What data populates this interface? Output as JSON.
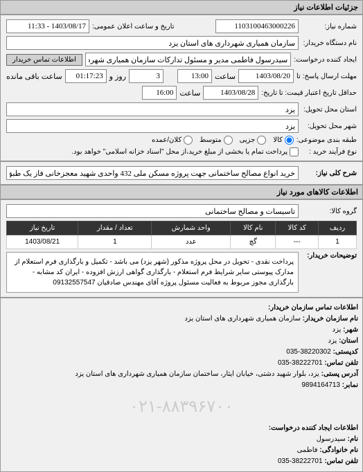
{
  "header": {
    "title": "جزئیات اطلاعات نیاز"
  },
  "form": {
    "request_number_label": "شماره نیاز:",
    "request_number": "1103100463000226",
    "announce_datetime_label": "تاریخ و ساعت اعلان عمومی:",
    "announce_datetime": "1403/08/17 - 11:33",
    "buyer_org_label": "نام دستگاه خریدار:",
    "buyer_org": "سازمان همیاری شهرداری های استان یزد",
    "requester_label": "ایجاد کننده درخواست:",
    "requester": "سیدرسول فاطمی مدیر و مسئول تدارکات سازمان همیاری شهرداری های استا",
    "contact_btn": "اطلاعات تماس خریدار",
    "response_deadline_label": "مهلت ارسال پاسخ: تا",
    "response_date": "1403/08/20",
    "time_label": "ساعت",
    "response_time": "13:00",
    "days_label": "روز و",
    "remaining_days": "3",
    "remaining_time": "01:17:23",
    "remaining_label": "ساعت باقی مانده",
    "validity_label": "حداقل تاریخ اعتبار قیمت: تا تاریخ:",
    "validity_date": "1403/08/28",
    "validity_time": "16:00",
    "delivery_province_label": "استان محل تحویل:",
    "delivery_province": "یزد",
    "delivery_city_label": "شهر محل تحویل:",
    "delivery_city": "یزد",
    "quantity_type_label": "طبقه بندی موضوعی:",
    "radio_goods": "کالا",
    "radio_service": "جزیی",
    "radio_medium": "متوسط",
    "radio_partial": "کلان/عمده",
    "purchase_method_label": "نوع فرآیند خرید :",
    "checkbox1": "پرداخت تمام یا بخشی از مبلغ خرید،از محل \"اسناد خزانه اسلامی\" خواهد بود."
  },
  "keywords": {
    "label": "شرح کلی نیاز:",
    "value": "خرید انواع مصالح ساختمانی جهت پروژه مسکن ملی 432 واحدی شهید معجزخانی فاز یک طبق فرم استعلام"
  },
  "goods_info": {
    "section_title": "اطلاعات کالاهای مورد نیاز",
    "group_label": "گروه کالا:",
    "group_value": "تاسیسات و مصالح ساختمانی"
  },
  "table": {
    "headers": [
      "ردیف",
      "کد کالا",
      "نام کالا",
      "واحد شمارش",
      "تعداد / مقدار",
      "تاریخ نیاز"
    ],
    "rows": [
      {
        "index": "1",
        "code": "---",
        "name": "گچ",
        "unit": "عدد",
        "qty": "1",
        "date": "1403/08/21"
      }
    ]
  },
  "description": {
    "label": "توضیحات خریدار:",
    "text": "پرداخت نقدی - تحویل در محل پروژه مذکور (شهر یزد) می باشد - تکمیل و بارگذاری فرم استعلام از مدارک پیوستی سایر شرایط فرم استعلام - بارگذاری گواهی ارزش افزوده - ایران کد مشابه - بارگذاری مجوز مربوط به فعالیت مسئول پروژه آقای مهندس صادقیان 09132557547"
  },
  "contact": {
    "section_title": "اطلاعات تماس سازمان خریدار:",
    "org_label": "نام سازمان خریدار:",
    "org_value": "سازمان همیاری شهرداری های استان یزد",
    "city_label": "شهر:",
    "city_value": "یزد",
    "province_label": "استان:",
    "province_value": "یزد",
    "postal_label": "کدپستی:",
    "postal_value": "38220302-035",
    "phone_label": "تلفن تماس:",
    "phone_value": "38222701-035",
    "address_label": "آدرس پستی:",
    "address_value": "یزد، بلوار شهید دشتی، خیابان ایثار، ساختمان سازمان همیاری شهرداری های استان یزد",
    "fax_label": "نمابر:",
    "fax_value": "9894164713",
    "requester_section": "اطلاعات ایجاد کننده درخواست:",
    "name_label": "نام:",
    "name_value": "سیدرسول",
    "family_label": "نام خانوادگی:",
    "family_value": "فاطمی",
    "req_phone_label": "تلفن تماس:",
    "req_phone_value": "38222701-035"
  },
  "watermark": "۰۲۱-۸۸۳۹۶۷۰۰",
  "colors": {
    "bg": "#e8e8e8",
    "panel_bg": "#f0f0f0",
    "header_bg": "#d0d0d0",
    "table_header_bg": "#333333",
    "input_border": "#888888",
    "yellow": "#ffffcc"
  }
}
